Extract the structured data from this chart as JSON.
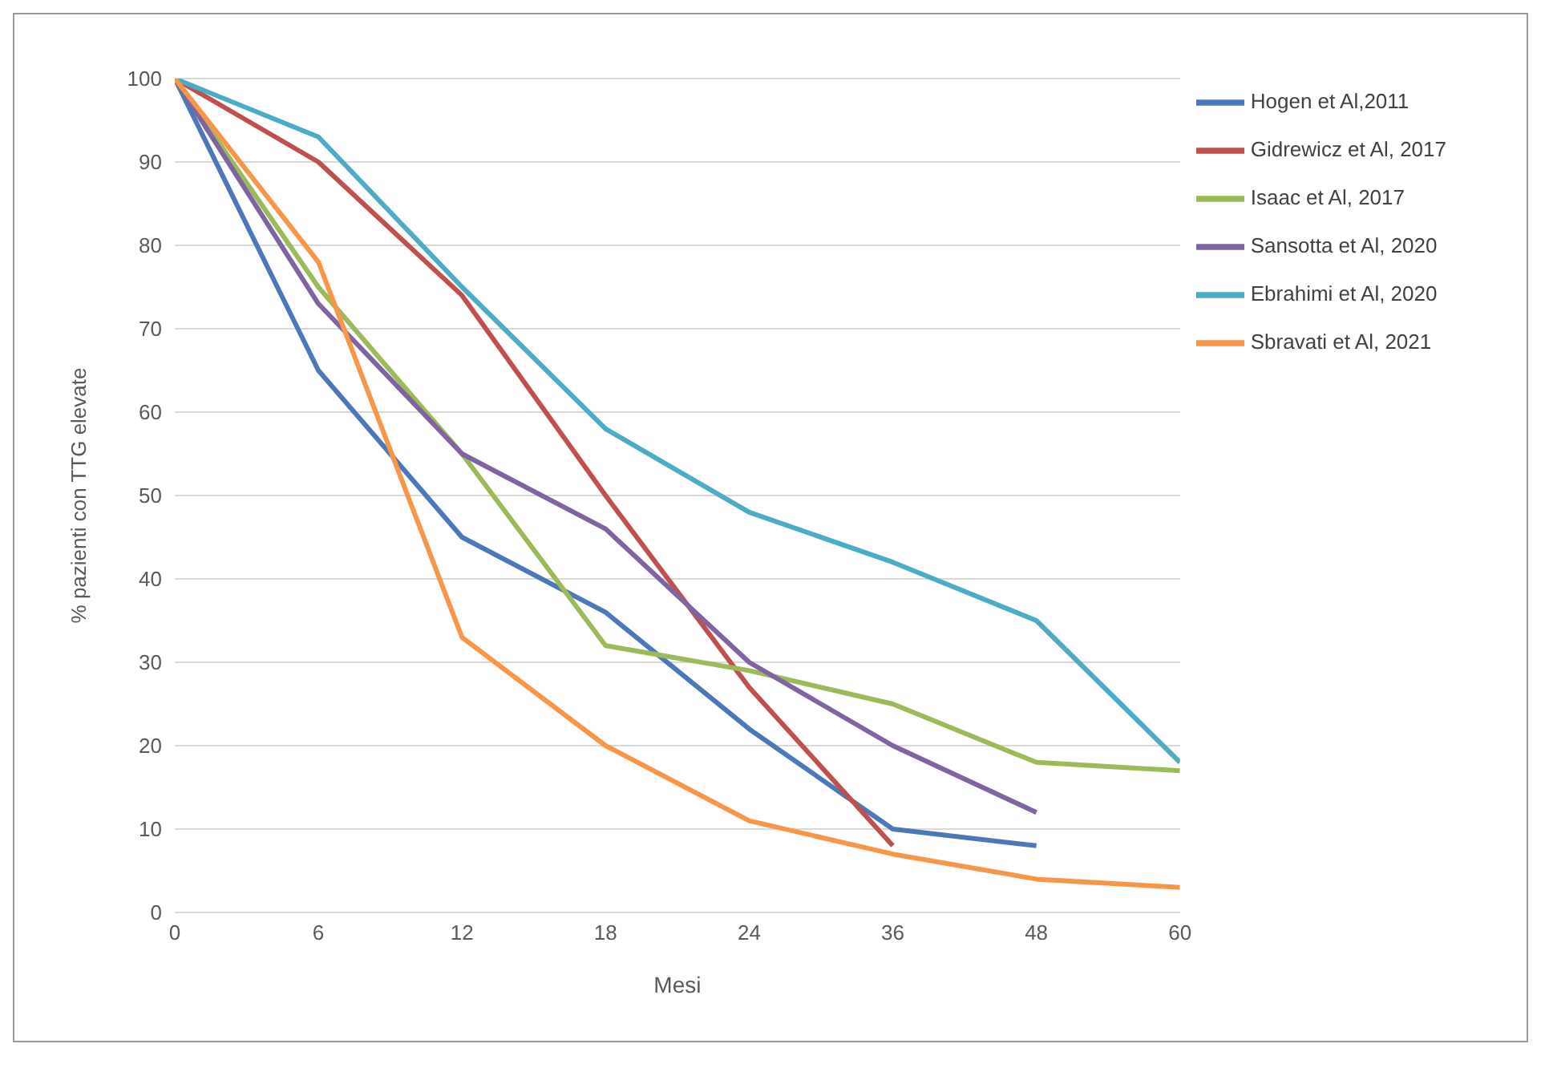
{
  "chart_data": {
    "type": "line",
    "xlabel": "Mesi",
    "ylabel": "% pazienti con TTG elevate",
    "categories": [
      "0",
      "6",
      "12",
      "18",
      "24",
      "36",
      "48",
      "60"
    ],
    "ylim": [
      0,
      100
    ],
    "yticks": [
      0,
      10,
      20,
      30,
      40,
      50,
      60,
      70,
      80,
      90,
      100
    ],
    "grid": "y",
    "legend": "top right",
    "marker": "none",
    "line_style": "solid",
    "series": [
      {
        "name": "Hogen et Al,2011",
        "color": "#4a78b8",
        "values": [
          100,
          65,
          45,
          36,
          22,
          10,
          8,
          null
        ]
      },
      {
        "name": "Gidrewicz et Al, 2017",
        "color": "#c0504d",
        "values": [
          100,
          90,
          74,
          50,
          27,
          8,
          null,
          null
        ]
      },
      {
        "name": "Isaac et Al, 2017",
        "color": "#9bbb59",
        "values": [
          100,
          75,
          55,
          32,
          29,
          25,
          18,
          17
        ]
      },
      {
        "name": "Sansotta et Al, 2020",
        "color": "#8064a2",
        "values": [
          100,
          73,
          55,
          46,
          30,
          20,
          12,
          null
        ]
      },
      {
        "name": "Ebrahimi et Al, 2020",
        "color": "#4bacc6",
        "values": [
          100,
          93,
          75,
          58,
          48,
          42,
          35,
          18
        ]
      },
      {
        "name": "Sbravati et Al, 2021",
        "color": "#f79646",
        "values": [
          100,
          78,
          33,
          20,
          11,
          7,
          4,
          3
        ]
      }
    ]
  }
}
